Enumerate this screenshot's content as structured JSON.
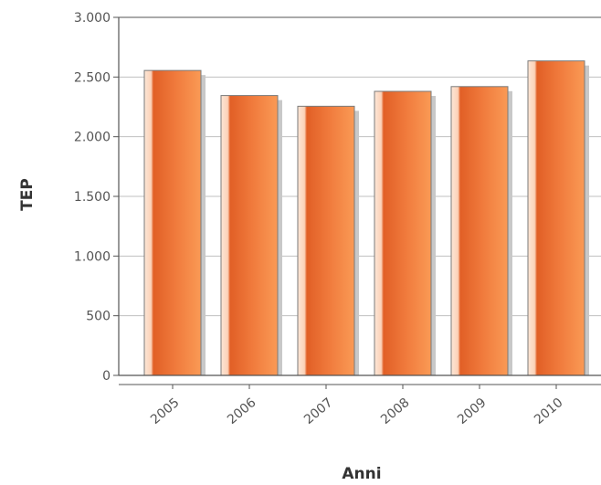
{
  "chart_data": {
    "type": "bar",
    "title": "",
    "xlabel": "Anni",
    "ylabel": "TEP",
    "categories": [
      "2005",
      "2006",
      "2007",
      "2008",
      "2009",
      "2010"
    ],
    "values": [
      2555,
      2345,
      2255,
      2380,
      2420,
      2635
    ],
    "ylim": [
      0,
      3000
    ],
    "yticks": [
      0,
      500,
      1000,
      1500,
      2000,
      2500,
      3000
    ],
    "ytick_labels": [
      "0",
      "500",
      "1.000",
      "1.500",
      "2.000",
      "2.500",
      "3.000"
    ],
    "grid": true,
    "legend": "none",
    "colors": {
      "bar": "#f0773a",
      "bar_dark": "#e15f26",
      "bar_light": "#fa9a55",
      "bar_highlight": "#fde6d6",
      "bar_edge": "#7a7a7a",
      "shadow": "#c8c8c8",
      "grid": "#c0c0c0",
      "axis": "#555555"
    }
  }
}
